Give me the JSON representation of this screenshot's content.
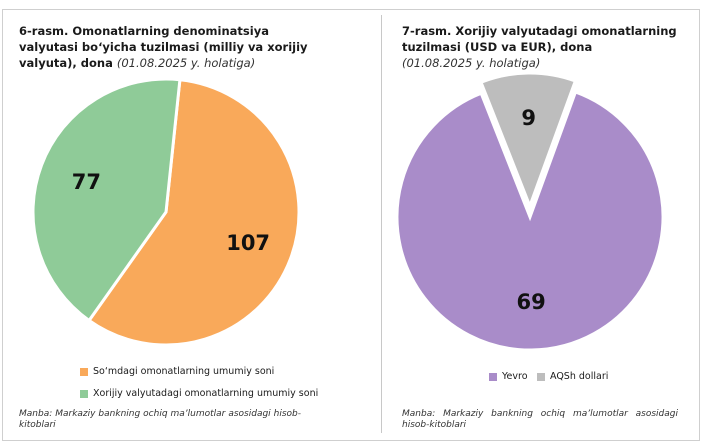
{
  "charts": {
    "left": {
      "title_main": "6-rasm. Omonatlarning denominatsiya valyutasi bo‘yicha tuzilmasi (milliy va xorijiy valyuta), dona",
      "title_date": "(01.08.2025 y. holatiga)",
      "source": "Manba: Markaziy bankning ochiq ma’lumotlar asosidagi hisob-kitoblari"
    },
    "right": {
      "title_main": "7-rasm. Xorijiy valyutadagi omonatlarning tuzilmasi (USD va EUR), dona",
      "title_date": "(01.08.2025 y. holatiga)",
      "source": "Manba: Markaziy bankning ochiq ma’lumotlar asosidagi hisob-kitoblari"
    }
  },
  "chart_data": [
    {
      "type": "pie",
      "title": "6-rasm. Omonatlarning denominatsiya valyutasi bo‘yicha tuzilmasi (milliy va xorijiy valyuta), dona (01.08.2025 y. holatiga)",
      "categories": [
        "So‘mdagi omonatlarning umumiy soni",
        "Xorijiy valyutadagi omonatlarning umumiy soni"
      ],
      "values": [
        107,
        77
      ],
      "labels": [
        "107",
        "77"
      ],
      "colors": [
        "#F9A95A",
        "#8FCB98"
      ],
      "legend_position": "bottom"
    },
    {
      "type": "pie",
      "title": "7-rasm. Xorijiy valyutadagi omonatlarning tuzilmasi (USD va EUR), dona (01.08.2025 y. holatiga)",
      "categories": [
        "Yevro",
        "AQSh dollari"
      ],
      "values": [
        69,
        9
      ],
      "labels": [
        "69",
        "9"
      ],
      "colors": [
        "#A98CC9",
        "#BDBDBD"
      ],
      "legend_position": "bottom"
    }
  ]
}
